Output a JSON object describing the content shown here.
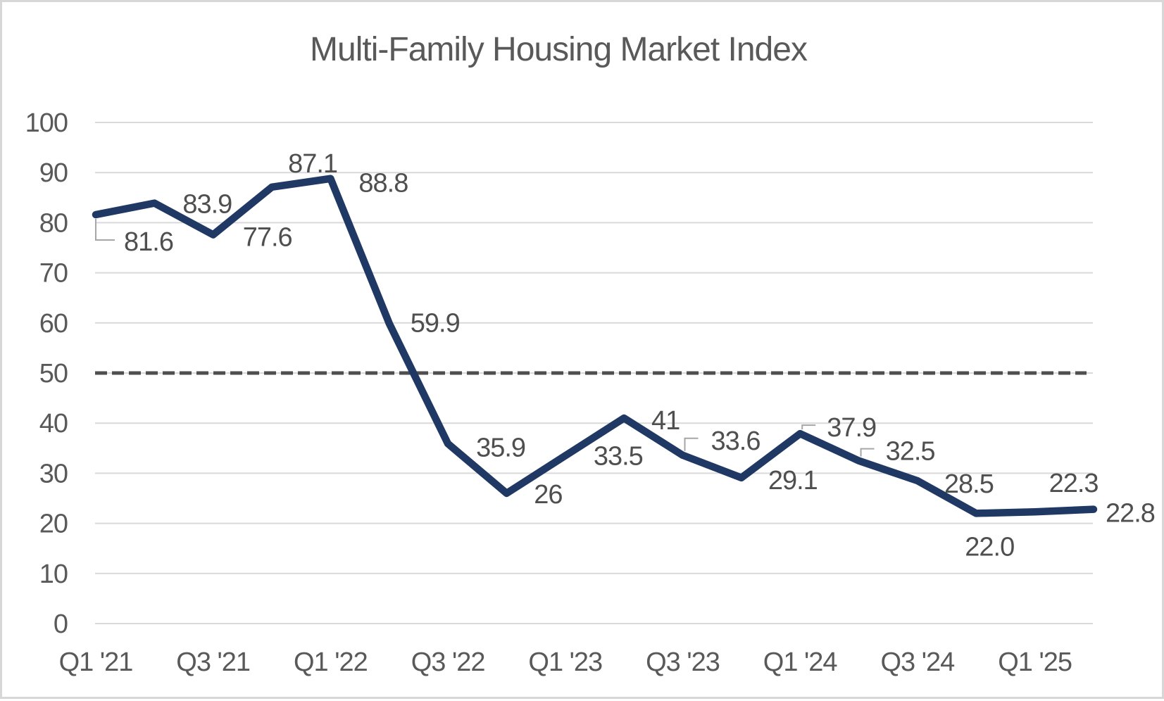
{
  "style": {
    "background": "#ffffff",
    "frame_border_color": "#d7d7d7",
    "series_color": "#1f3864",
    "gridline_color": "#d9d9d9",
    "reference_line_color": "#4f4f4f",
    "axis_text_color": "#595959",
    "data_label_color": "#4f4f4f",
    "leader_line_color": "#a6a6a6",
    "title_color": "#595959"
  },
  "chart_data": {
    "type": "line",
    "title": "Multi-Family Housing Market Index",
    "xlabel": "",
    "ylabel": "",
    "ylim": [
      0,
      100
    ],
    "y_ticks": [
      "100",
      "90",
      "80",
      "70",
      "60",
      "50",
      "40",
      "30",
      "20",
      "10",
      "0"
    ],
    "x_tick_labels": [
      "Q1 '21",
      "Q3 '21",
      "Q1 '22",
      "Q3 '22",
      "Q1 '23",
      "Q3 '23",
      "Q1 '24",
      "Q3 '24",
      "Q1 '25"
    ],
    "grid": "horizontal gridlines only",
    "legend": "none",
    "reference_line": {
      "value": 50,
      "style": "dashed"
    },
    "series": [
      {
        "name": "Multi-Family Housing Market Index",
        "points": [
          {
            "period": "Q1 '21",
            "value": 81.6,
            "label": "81.6",
            "label_offset": [
              75,
              38
            ],
            "leader": "elbow-down"
          },
          {
            "period": "Q2 '21",
            "value": 83.9,
            "label": "83.9",
            "label_offset": [
              75,
              1
            ],
            "leader": null
          },
          {
            "period": "Q3 '21",
            "value": 77.6,
            "label": "77.6",
            "label_offset": [
              77,
              3
            ],
            "leader": null
          },
          {
            "period": "Q4 '21",
            "value": 87.1,
            "label": "87.1",
            "label_offset": [
              58,
              -34
            ],
            "leader": null
          },
          {
            "period": "Q1 '22",
            "value": 88.8,
            "label": "88.8",
            "label_offset": [
              75,
              6
            ],
            "leader": null
          },
          {
            "period": "Q2 '22",
            "value": 59.9,
            "label": "59.9",
            "label_offset": [
              65,
              -1
            ],
            "leader": null
          },
          {
            "period": "Q3 '22",
            "value": 35.9,
            "label": "35.9",
            "label_offset": [
              75,
              5
            ],
            "leader": null
          },
          {
            "period": "Q4 '22",
            "value": 26,
            "label": "26",
            "label_offset": [
              59,
              1
            ],
            "leader": null
          },
          {
            "period": "Q1 '23",
            "value": 33.5,
            "label": "33.5",
            "label_offset": [
              75,
              0
            ],
            "leader": null
          },
          {
            "period": "Q2 '23",
            "value": 41,
            "label": "41",
            "label_offset": [
              59,
              3
            ],
            "leader": null
          },
          {
            "period": "Q3 '23",
            "value": 33.6,
            "label": "33.6",
            "label_offset": [
              75,
              -21
            ],
            "leader": "elbow-up"
          },
          {
            "period": "Q4 '23",
            "value": 29.1,
            "label": "29.1",
            "label_offset": [
              73,
              3
            ],
            "leader": null
          },
          {
            "period": "Q1 '24",
            "value": 37.9,
            "label": "37.9",
            "label_offset": [
              73,
              -9
            ],
            "leader": "elbow-up"
          },
          {
            "period": "Q2 '24",
            "value": 32.5,
            "label": "32.5",
            "label_offset": [
              73,
              -14
            ],
            "leader": "elbow-up"
          },
          {
            "period": "Q3 '24",
            "value": 28.5,
            "label": "28.5",
            "label_offset": [
              73,
              4
            ],
            "leader": null
          },
          {
            "period": "Q4 '24",
            "value": 22.0,
            "label": "22.0",
            "label_offset": [
              19,
              47
            ],
            "leader": null
          },
          {
            "period": "Q1 '25",
            "value": 22.3,
            "label": "22.3",
            "label_offset": [
              55,
              -41
            ],
            "leader": null
          },
          {
            "period": "Q2 '25",
            "value": 22.8,
            "label": "22.8",
            "label_offset": [
              52,
              5
            ],
            "leader": null
          }
        ]
      }
    ]
  }
}
